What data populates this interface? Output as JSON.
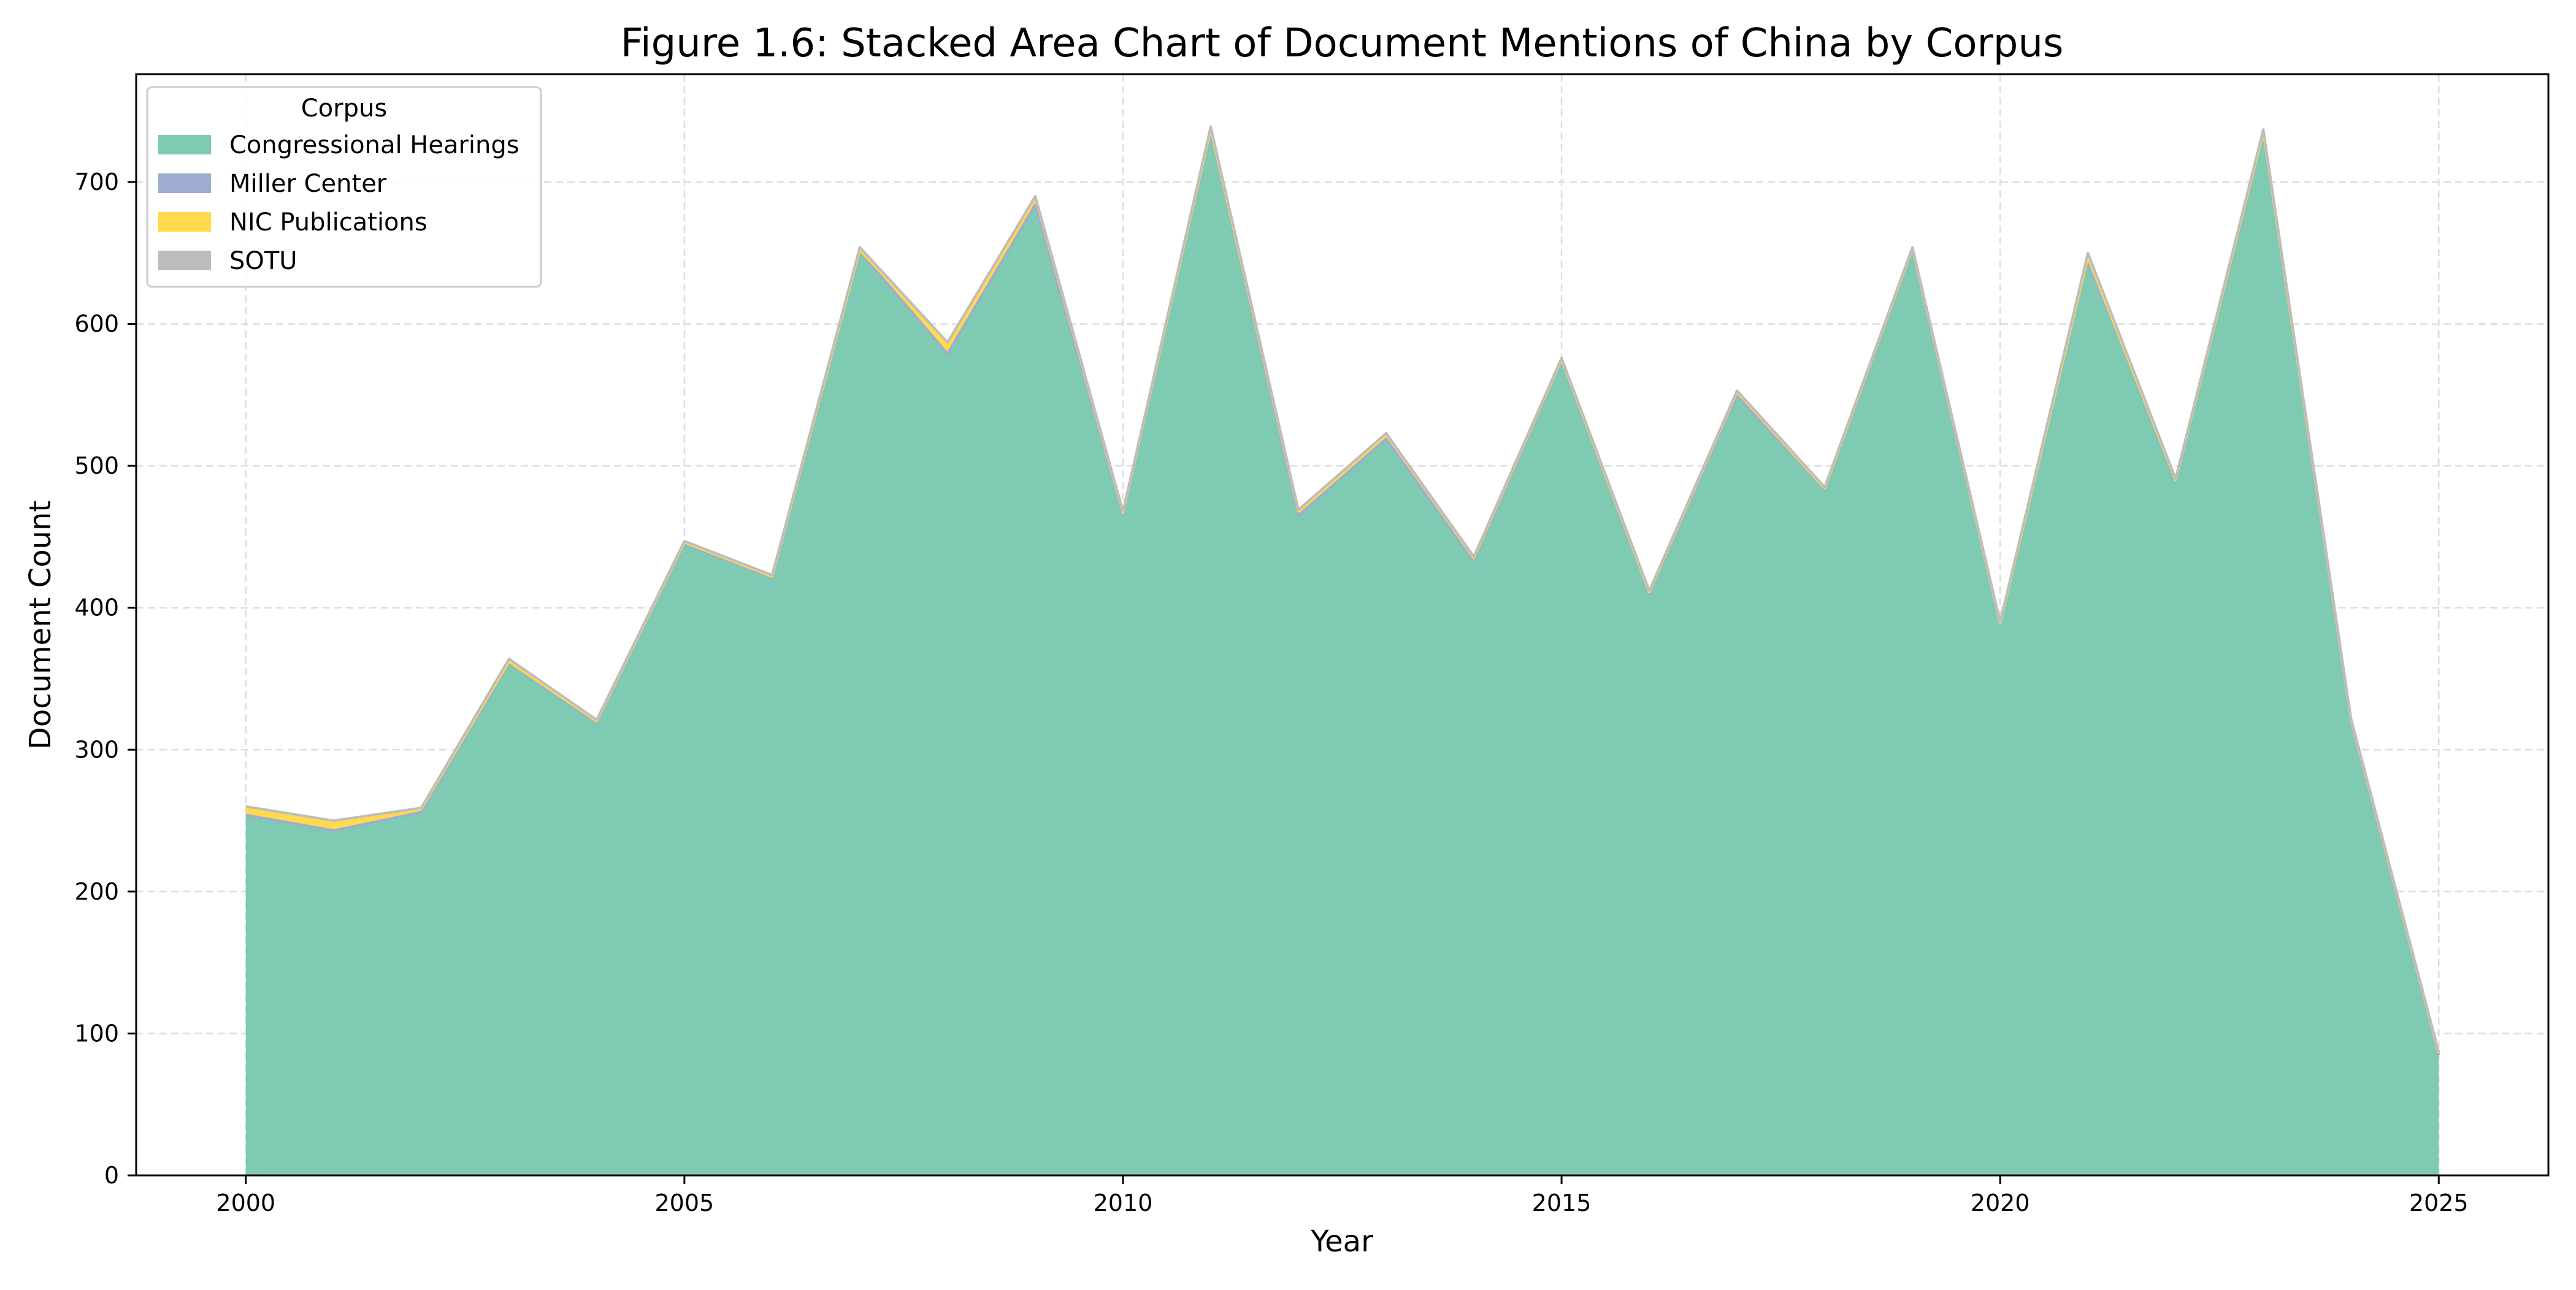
{
  "chart_data": {
    "type": "area",
    "stacked": true,
    "title": "Figure 1.6: Stacked Area Chart of Document Mentions of China by Corpus",
    "xlabel": "Year",
    "ylabel": "Document Count",
    "xlim": [
      1998.75,
      2026.25
    ],
    "ylim": [
      0,
      776
    ],
    "x_ticks": [
      2000,
      2005,
      2010,
      2015,
      2020,
      2025
    ],
    "y_ticks": [
      0,
      100,
      200,
      300,
      400,
      500,
      600,
      700
    ],
    "grid": true,
    "legend": {
      "title": "Corpus",
      "position": "top-left"
    },
    "x": [
      2000,
      2001,
      2002,
      2003,
      2004,
      2005,
      2006,
      2007,
      2008,
      2009,
      2010,
      2011,
      2012,
      2013,
      2014,
      2015,
      2016,
      2017,
      2018,
      2019,
      2020,
      2021,
      2022,
      2023,
      2024,
      2025
    ],
    "series": [
      {
        "name": "Congressional Hearings",
        "color": "#7fcab2",
        "values": [
          253,
          242,
          255,
          360,
          319,
          444,
          420,
          650,
          578,
          683,
          466,
          735,
          464,
          518,
          433,
          573,
          410,
          549,
          482,
          651,
          389,
          639,
          488,
          733,
          320,
          85
        ]
      },
      {
        "name": "Miller Center",
        "color": "#9eacd1",
        "values": [
          1,
          1,
          1,
          1,
          0,
          1,
          1,
          1,
          1,
          1,
          0,
          1,
          1,
          1,
          0,
          1,
          0,
          1,
          1,
          1,
          0,
          7,
          1,
          1,
          0,
          0
        ]
      },
      {
        "name": "NIC Publications",
        "color": "#ffd94e",
        "values": [
          5,
          6,
          2,
          1,
          1,
          1,
          1,
          1,
          7,
          5,
          1,
          1,
          3,
          3,
          2,
          1,
          1,
          2,
          1,
          1,
          0,
          1,
          1,
          1,
          1,
          1
        ]
      },
      {
        "name": "SOTU",
        "color": "#bdbdbd",
        "values": [
          1,
          1,
          1,
          2,
          1,
          1,
          1,
          2,
          1,
          1,
          1,
          2,
          1,
          1,
          1,
          1,
          1,
          1,
          1,
          1,
          1,
          3,
          1,
          2,
          1,
          1
        ]
      }
    ]
  }
}
